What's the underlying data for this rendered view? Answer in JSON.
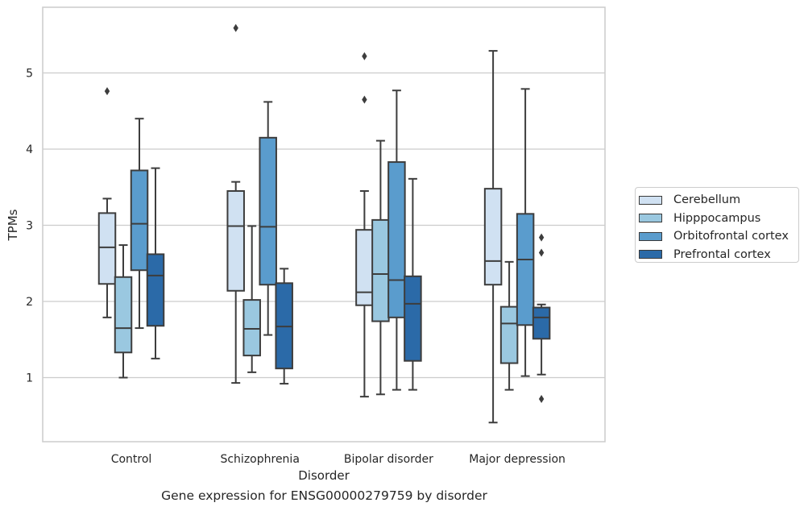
{
  "chart_data": {
    "type": "box",
    "title": "",
    "caption": "Gene expression for ENSG00000279759 by disorder",
    "xlabel": "Disorder",
    "ylabel": "TPMs",
    "ylim": [
      0.15,
      5.85
    ],
    "yticks": [
      1,
      2,
      3,
      4,
      5
    ],
    "grid": "horizontal",
    "legend_position": "right",
    "categories": [
      "Control",
      "Schizophrenia",
      "Bipolar disorder",
      "Major depression"
    ],
    "series": [
      {
        "name": "Cerebellum",
        "color": "#d0e1f2",
        "boxes": [
          {
            "whisker_low": 1.79,
            "q1": 2.23,
            "median": 2.71,
            "q3": 3.16,
            "whisker_high": 3.35,
            "outliers": [
              4.76
            ]
          },
          {
            "whisker_low": 0.93,
            "q1": 2.14,
            "median": 2.99,
            "q3": 3.45,
            "whisker_high": 3.57,
            "outliers": [
              5.59
            ]
          },
          {
            "whisker_low": 0.75,
            "q1": 1.95,
            "median": 2.12,
            "q3": 2.94,
            "whisker_high": 3.45,
            "outliers": [
              4.65,
              5.22
            ]
          },
          {
            "whisker_low": 0.41,
            "q1": 2.22,
            "median": 2.53,
            "q3": 3.48,
            "whisker_high": 5.29,
            "outliers": []
          }
        ]
      },
      {
        "name": "Hipppocampus",
        "color": "#9ac8e0",
        "boxes": [
          {
            "whisker_low": 1.0,
            "q1": 1.33,
            "median": 1.65,
            "q3": 2.32,
            "whisker_high": 2.74,
            "outliers": []
          },
          {
            "whisker_low": 1.07,
            "q1": 1.29,
            "median": 1.64,
            "q3": 2.02,
            "whisker_high": 2.99,
            "outliers": []
          },
          {
            "whisker_low": 0.78,
            "q1": 1.74,
            "median": 2.36,
            "q3": 3.07,
            "whisker_high": 4.11,
            "outliers": []
          },
          {
            "whisker_low": 0.84,
            "q1": 1.19,
            "median": 1.71,
            "q3": 1.93,
            "whisker_high": 2.52,
            "outliers": []
          }
        ]
      },
      {
        "name": "Orbitofrontal cortex",
        "color": "#5a9ccd",
        "boxes": [
          {
            "whisker_low": 1.65,
            "q1": 2.41,
            "median": 3.02,
            "q3": 3.72,
            "whisker_high": 4.4,
            "outliers": []
          },
          {
            "whisker_low": 1.56,
            "q1": 2.22,
            "median": 2.98,
            "q3": 4.15,
            "whisker_high": 4.62,
            "outliers": []
          },
          {
            "whisker_low": 0.84,
            "q1": 1.79,
            "median": 2.28,
            "q3": 3.83,
            "whisker_high": 4.77,
            "outliers": []
          },
          {
            "whisker_low": 1.02,
            "q1": 1.69,
            "median": 2.55,
            "q3": 3.15,
            "whisker_high": 4.79,
            "outliers": []
          }
        ]
      },
      {
        "name": "Prefrontal cortex",
        "color": "#2b6aa8",
        "boxes": [
          {
            "whisker_low": 1.25,
            "q1": 1.68,
            "median": 2.34,
            "q3": 2.62,
            "whisker_high": 3.75,
            "outliers": []
          },
          {
            "whisker_low": 0.92,
            "q1": 1.12,
            "median": 1.67,
            "q3": 2.24,
            "whisker_high": 2.43,
            "outliers": []
          },
          {
            "whisker_low": 0.84,
            "q1": 1.22,
            "median": 1.97,
            "q3": 2.33,
            "whisker_high": 3.61,
            "outliers": []
          },
          {
            "whisker_low": 1.04,
            "q1": 1.51,
            "median": 1.79,
            "q3": 1.92,
            "whisker_high": 1.96,
            "outliers": [
              0.72,
              2.64,
              2.84
            ]
          }
        ]
      }
    ]
  }
}
